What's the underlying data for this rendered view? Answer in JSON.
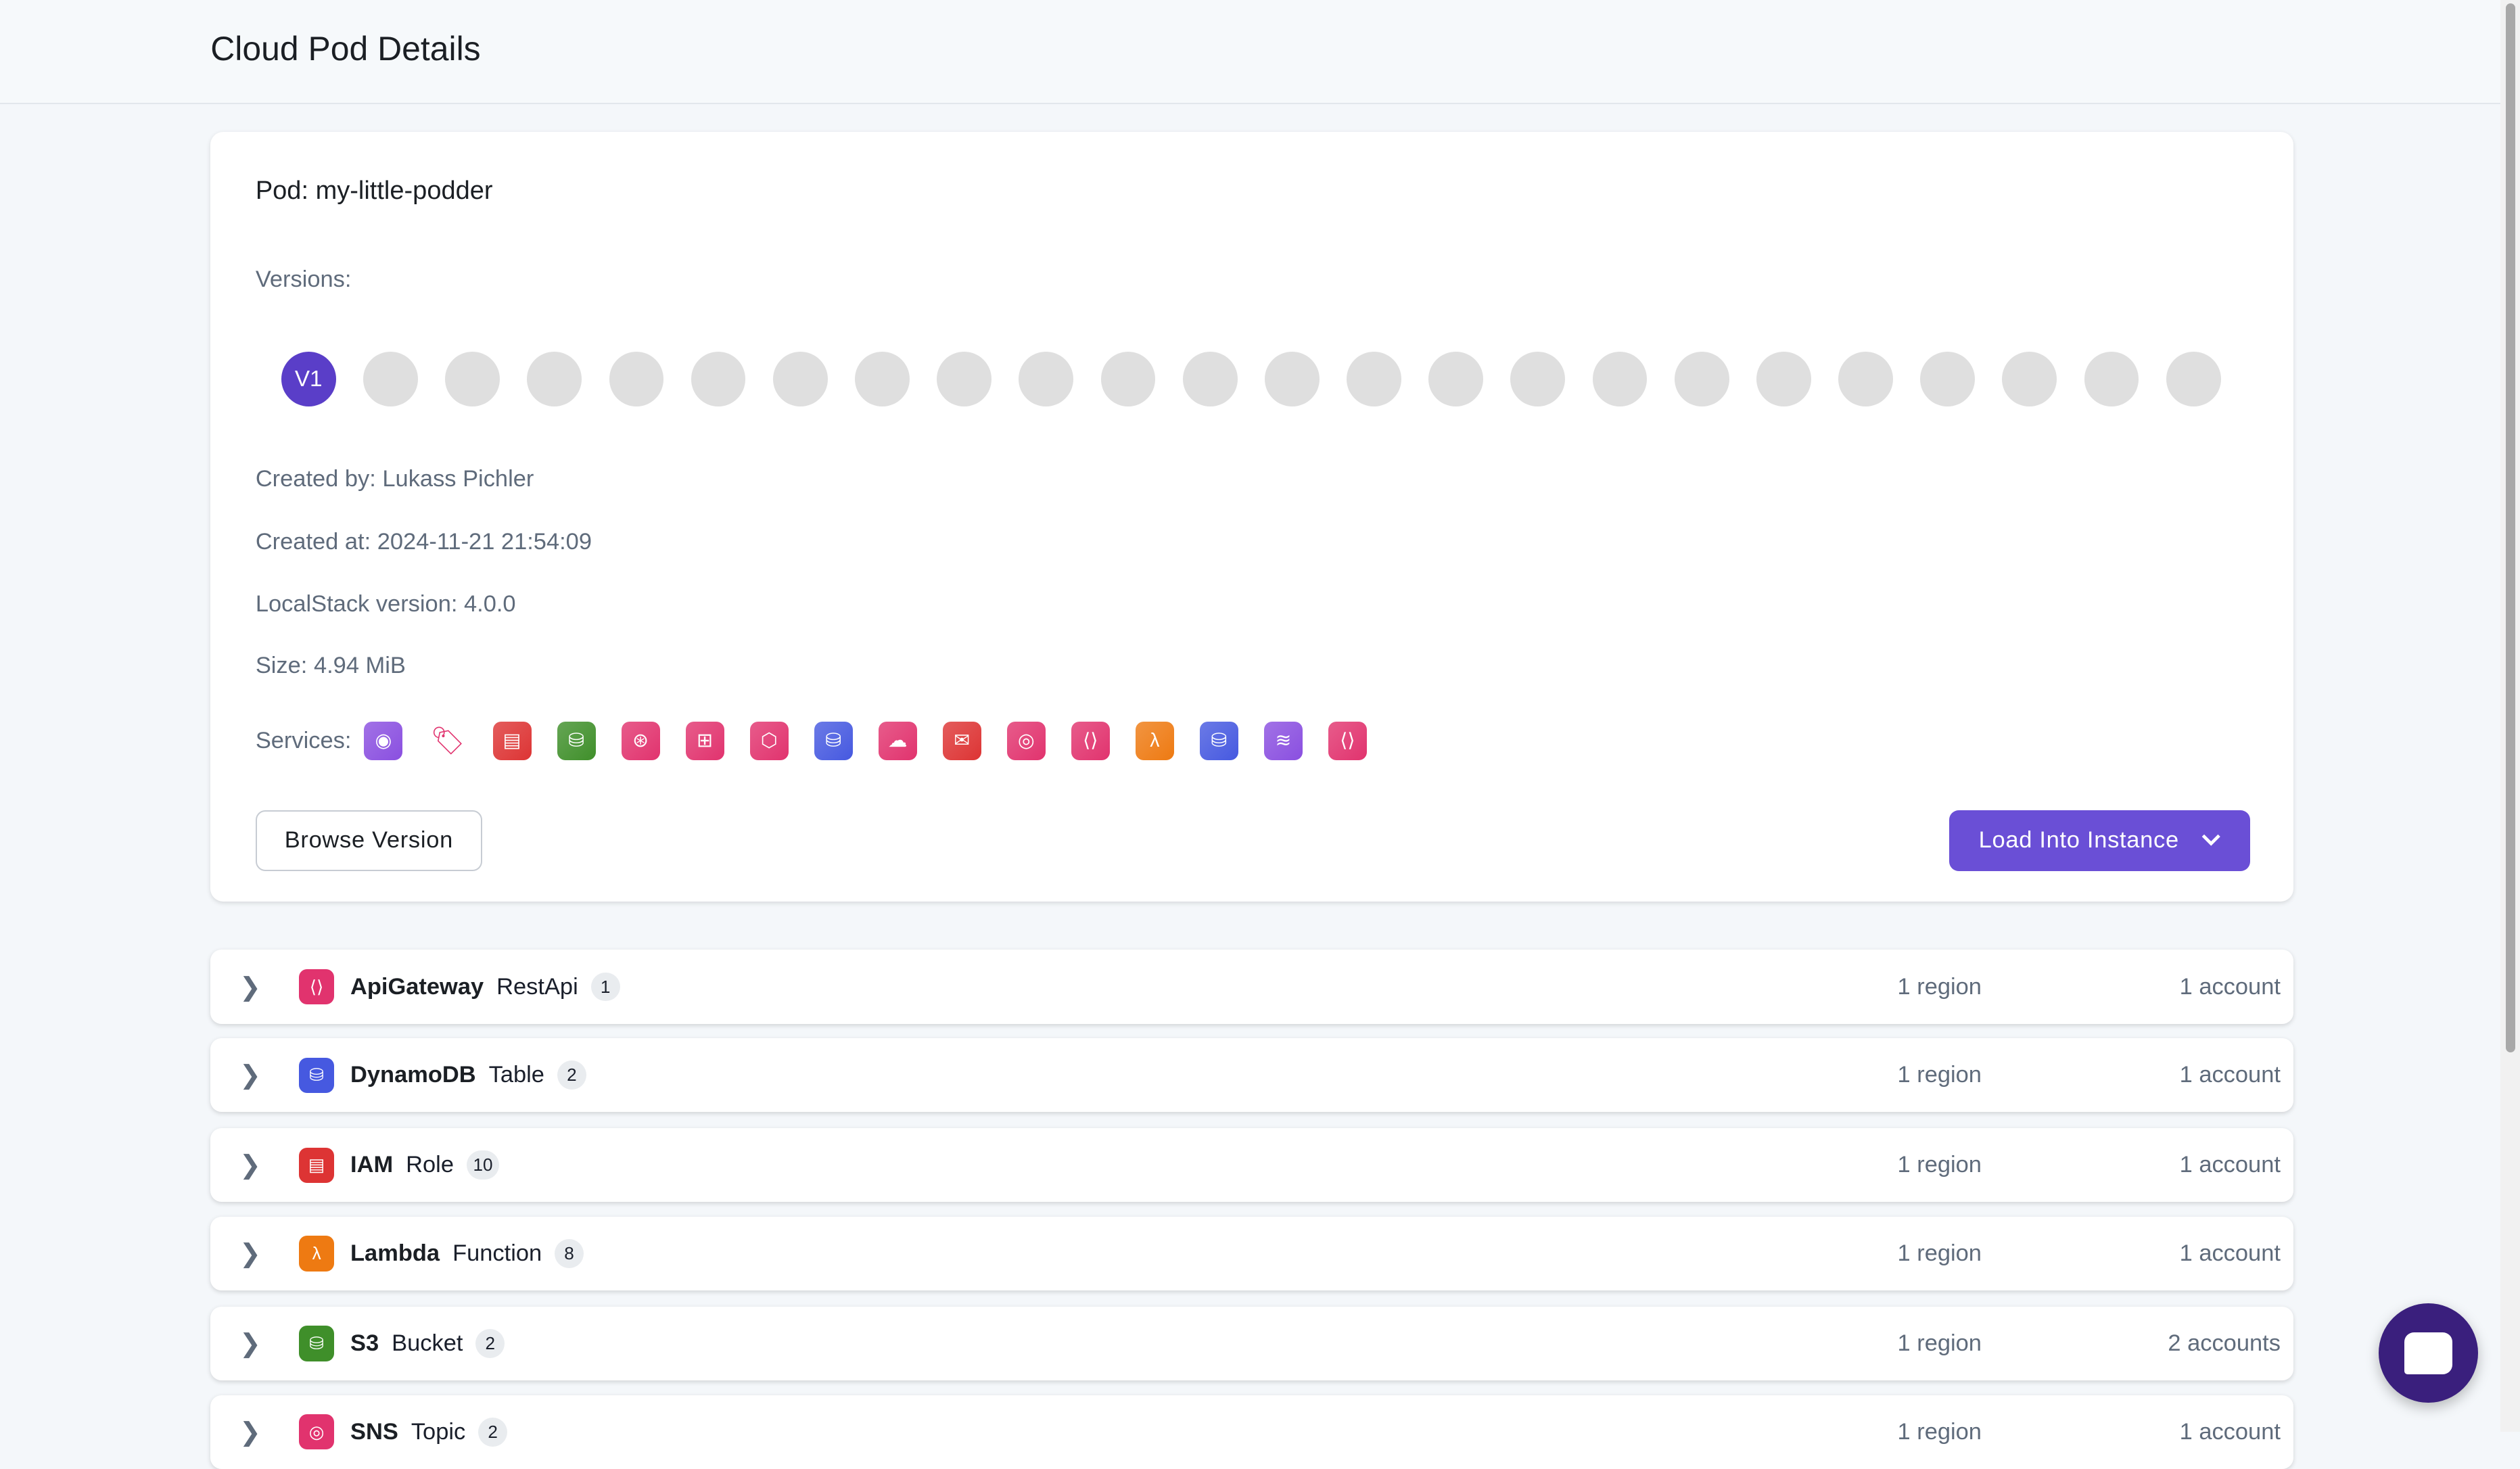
{
  "header": {
    "title": "Cloud Pod Details"
  },
  "pod": {
    "title": "Pod: my-little-podder",
    "versions_label": "Versions:",
    "versions": [
      "V1",
      "",
      "",
      "",
      "",
      "",
      "",
      "",
      "",
      "",
      "",
      "",
      "",
      "",
      "",
      "",
      "",
      "",
      "",
      "",
      "",
      "",
      "",
      ""
    ],
    "created_by": "Created by: Lukass Pichler",
    "created_at": "Created at: 2024-11-21 21:54:09",
    "localstack_version": "LocalStack version: 4.0.0",
    "size": "Size: 4.94 MiB",
    "services_label": "Services:",
    "services": [
      {
        "icon": "network-icon",
        "color": "#8a4fe0",
        "glyph": "◉"
      },
      {
        "icon": "tag-icon",
        "color": "#ffffff",
        "glyph": "🏷"
      },
      {
        "icon": "iam-icon",
        "color": "#dd3434",
        "glyph": "▤"
      },
      {
        "icon": "s3-icon",
        "color": "#3f8f2a",
        "glyph": "⛁"
      },
      {
        "icon": "eventbridge-icon",
        "color": "#e1336e",
        "glyph": "⊛"
      },
      {
        "icon": "stepfunctions-icon",
        "color": "#e1336e",
        "glyph": "⊞"
      },
      {
        "icon": "graph-icon",
        "color": "#e1336e",
        "glyph": "⬡"
      },
      {
        "icon": "dynamodb-icon",
        "color": "#4659e0",
        "glyph": "⛁"
      },
      {
        "icon": "cloud-search-icon",
        "color": "#e1336e",
        "glyph": "☁"
      },
      {
        "icon": "envelope-icon",
        "color": "#dd3434",
        "glyph": "✉"
      },
      {
        "icon": "sns-icon",
        "color": "#e1336e",
        "glyph": "◎"
      },
      {
        "icon": "apigateway-icon",
        "color": "#e1336e",
        "glyph": "⟨⟩"
      },
      {
        "icon": "lambda-icon",
        "color": "#ee7a12",
        "glyph": "λ"
      },
      {
        "icon": "dynamodb-streams-icon",
        "color": "#4659e0",
        "glyph": "⛁"
      },
      {
        "icon": "kinesis-icon",
        "color": "#8a4fe0",
        "glyph": "≋"
      },
      {
        "icon": "apigateway-icon",
        "color": "#e1336e",
        "glyph": "⟨⟩"
      }
    ],
    "browse_label": "Browse Version",
    "load_label": "Load Into Instance"
  },
  "resources": [
    {
      "service": "ApiGateway",
      "type": "RestApi",
      "count": "1",
      "region": "1 region",
      "account": "1 account",
      "icon": "apigateway-icon",
      "color": "#e1336e",
      "glyph": "⟨⟩"
    },
    {
      "service": "DynamoDB",
      "type": "Table",
      "count": "2",
      "region": "1 region",
      "account": "1 account",
      "icon": "dynamodb-icon",
      "color": "#4659e0",
      "glyph": "⛁"
    },
    {
      "service": "IAM",
      "type": "Role",
      "count": "10",
      "region": "1 region",
      "account": "1 account",
      "icon": "iam-icon",
      "color": "#dd3434",
      "glyph": "▤"
    },
    {
      "service": "Lambda",
      "type": "Function",
      "count": "8",
      "region": "1 region",
      "account": "1 account",
      "icon": "lambda-icon",
      "color": "#ee7a12",
      "glyph": "λ"
    },
    {
      "service": "S3",
      "type": "Bucket",
      "count": "2",
      "region": "1 region",
      "account": "2 accounts",
      "icon": "s3-icon",
      "color": "#3f8f2a",
      "glyph": "⛁"
    },
    {
      "service": "SNS",
      "type": "Topic",
      "count": "2",
      "region": "1 region",
      "account": "1 account",
      "icon": "sns-icon",
      "color": "#e1336e",
      "glyph": "◎"
    }
  ],
  "colors": {
    "accent": "#6a4fd6",
    "version_active": "#5a3ec8",
    "chat": "#3a1f7d"
  }
}
